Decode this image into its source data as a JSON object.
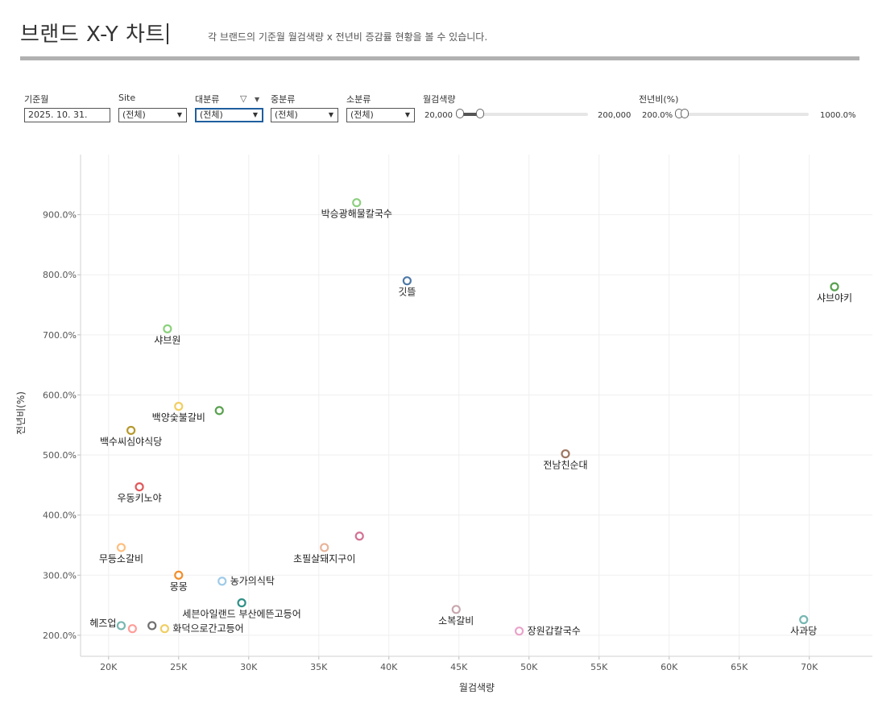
{
  "header": {
    "title": "브랜드 X-Y 차트",
    "subtitle": "각 브랜드의 기준월 월검색량 x 전년비 증감률 현황을 볼 수 있습니다."
  },
  "filters": {
    "base_month": {
      "label": "기준월",
      "value": "2025. 10. 31."
    },
    "site": {
      "label": "Site",
      "value": "(전체)"
    },
    "major": {
      "label": "대분류",
      "value": "(전체)"
    },
    "middle": {
      "label": "중분류",
      "value": "(전체)"
    },
    "minor": {
      "label": "소분류",
      "value": "(전체)"
    },
    "search_volume": {
      "label": "월검색량",
      "min": "20,000",
      "max": "200,000"
    },
    "yoy": {
      "label": "전년비(%)",
      "min": "200.0%",
      "max": "1000.0%"
    }
  },
  "chart_data": {
    "type": "scatter",
    "xlabel": "월검색량",
    "ylabel": "전년비(%)",
    "xlim": [
      18000,
      74500
    ],
    "ylim": [
      165,
      1000
    ],
    "x_ticks": [
      20000,
      25000,
      30000,
      35000,
      40000,
      45000,
      50000,
      55000,
      60000,
      65000,
      70000
    ],
    "x_tick_labels": [
      "20K",
      "25K",
      "30K",
      "35K",
      "40K",
      "45K",
      "50K",
      "55K",
      "60K",
      "65K",
      "70K"
    ],
    "y_ticks": [
      200,
      300,
      400,
      500,
      600,
      700,
      800,
      900
    ],
    "y_tick_labels": [
      "200.0%",
      "300.0%",
      "400.0%",
      "500.0%",
      "600.0%",
      "700.0%",
      "800.0%",
      "900.0%"
    ],
    "grid": true,
    "points": [
      {
        "label": "박승광해물칼국수",
        "x": 37700,
        "y": 920,
        "color": "#8ccf7e",
        "label_pos": "below"
      },
      {
        "label": "깃뜰",
        "x": 41300,
        "y": 790,
        "color": "#4e79a7",
        "label_pos": "below"
      },
      {
        "label": "샤브야키",
        "x": 71800,
        "y": 780,
        "color": "#59a14f",
        "label_pos": "below"
      },
      {
        "label": "샤브원",
        "x": 24200,
        "y": 710,
        "color": "#8cd17d",
        "label_pos": "below"
      },
      {
        "label": "백양숯불갈비",
        "x": 25000,
        "y": 581,
        "color": "#f1ce63",
        "label_pos": "below"
      },
      {
        "label": "",
        "x": 27900,
        "y": 574,
        "color": "#59a14f",
        "label_pos": "none"
      },
      {
        "label": "백수씨심야식당",
        "x": 21600,
        "y": 541,
        "color": "#b6992d",
        "label_pos": "below"
      },
      {
        "label": "전남친순대",
        "x": 52600,
        "y": 502,
        "color": "#9d7660",
        "label_pos": "below"
      },
      {
        "label": "우동키노야",
        "x": 22200,
        "y": 447,
        "color": "#e15759",
        "label_pos": "below"
      },
      {
        "label": "",
        "x": 37900,
        "y": 365,
        "color": "#d37295",
        "label_pos": "none"
      },
      {
        "label": "무등소갈비",
        "x": 20900,
        "y": 346,
        "color": "#ffbe7d",
        "label_pos": "below"
      },
      {
        "label": "초필살돼지구이",
        "x": 35400,
        "y": 346,
        "color": "#e8b49a",
        "label_pos": "below"
      },
      {
        "label": "몽몽",
        "x": 25000,
        "y": 300,
        "color": "#f28e2b",
        "label_pos": "below"
      },
      {
        "label": "농가의식탁",
        "x": 28100,
        "y": 290,
        "color": "#a0cbe8",
        "label_pos": "right"
      },
      {
        "label": "세븐아일랜드 부산에뜬고등어",
        "x": 29500,
        "y": 254,
        "color": "#2f8f86",
        "label_pos": "below"
      },
      {
        "label": "소복갈비",
        "x": 44800,
        "y": 243,
        "color": "#c7a7ae",
        "label_pos": "below"
      },
      {
        "label": "사과당",
        "x": 69600,
        "y": 226,
        "color": "#76b7b2",
        "label_pos": "below"
      },
      {
        "label": "헤즈업",
        "x": 20900,
        "y": 216,
        "color": "#76b7b2",
        "label_pos": "left"
      },
      {
        "label": "",
        "x": 21700,
        "y": 211,
        "color": "#ff9d9a",
        "label_pos": "none"
      },
      {
        "label": "",
        "x": 23100,
        "y": 216,
        "color": "#6f6f6f",
        "label_pos": "none"
      },
      {
        "label": "화덕으로간고등어",
        "x": 24000,
        "y": 211,
        "color": "#f1ce63",
        "label_pos": "right"
      },
      {
        "label": "장원갑칼국수",
        "x": 49300,
        "y": 207,
        "color": "#e9a3c9",
        "label_pos": "right"
      }
    ]
  }
}
